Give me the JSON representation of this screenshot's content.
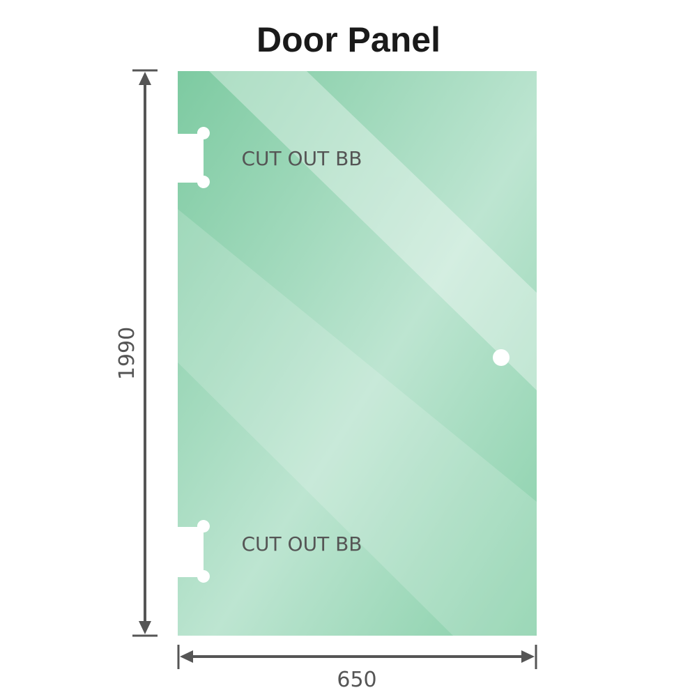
{
  "title": "Door Panel",
  "dimensions": {
    "height": "1990",
    "width": "650"
  },
  "cutouts": [
    {
      "label": "CUT OUT BB"
    },
    {
      "label": "CUT OUT BB"
    }
  ],
  "colors": {
    "glass": "#7fcca3",
    "glass_light": "#bfe6d2",
    "dimension_line": "#555555",
    "title": "#1a1a1a"
  }
}
